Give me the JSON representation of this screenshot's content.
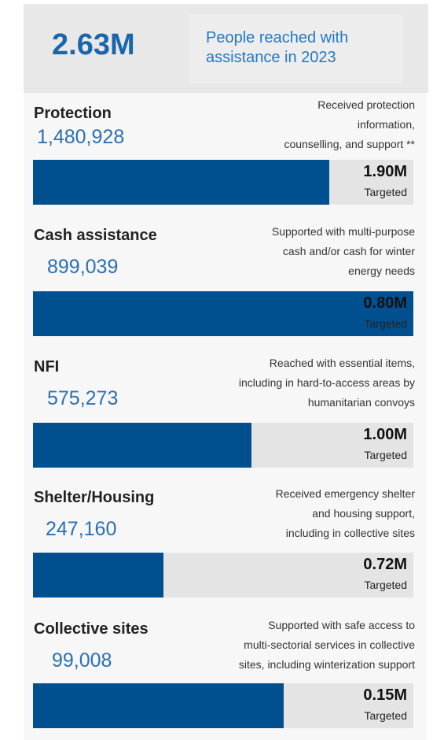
{
  "header": {
    "total": "2.63M",
    "caption": "People reached with assistance in 2023"
  },
  "sections": [
    {
      "title": "Protection",
      "reached": 1480928,
      "reached_label": "1,480,928",
      "description": [
        "Received protection",
        "information,",
        "counselling, and support **"
      ],
      "target": 1900000,
      "target_label": "1.90M",
      "target_caption": "Targeted"
    },
    {
      "title": "Cash assistance",
      "reached": 899039,
      "reached_label": "899,039",
      "description": [
        "Supported with multi-purpose",
        "cash and/or cash for winter",
        "energy needs"
      ],
      "target": 800000,
      "target_label": "0.80M",
      "target_caption": "Targeted"
    },
    {
      "title": "NFI",
      "reached": 575273,
      "reached_label": "575,273",
      "description": [
        "Reached with essential items,",
        "including in hard-to-access areas by",
        "humanitarian convoys"
      ],
      "target": 1000000,
      "target_label": "1.00M",
      "target_caption": "Targeted"
    },
    {
      "title": "Shelter/Housing",
      "reached": 247160,
      "reached_label": "247,160",
      "description": [
        "Received emergency shelter",
        "and housing support,",
        "including in collective sites"
      ],
      "target": 720000,
      "target_label": "0.72M",
      "target_caption": "Targeted"
    },
    {
      "title": "Collective sites",
      "reached": 99008,
      "reached_label": "99,008",
      "description": [
        "Supported with safe access to",
        "multi-sectorial services in collective",
        "sites, including winterization support"
      ],
      "target": 150000,
      "target_label": "0.15M",
      "target_caption": "Targeted"
    }
  ]
}
